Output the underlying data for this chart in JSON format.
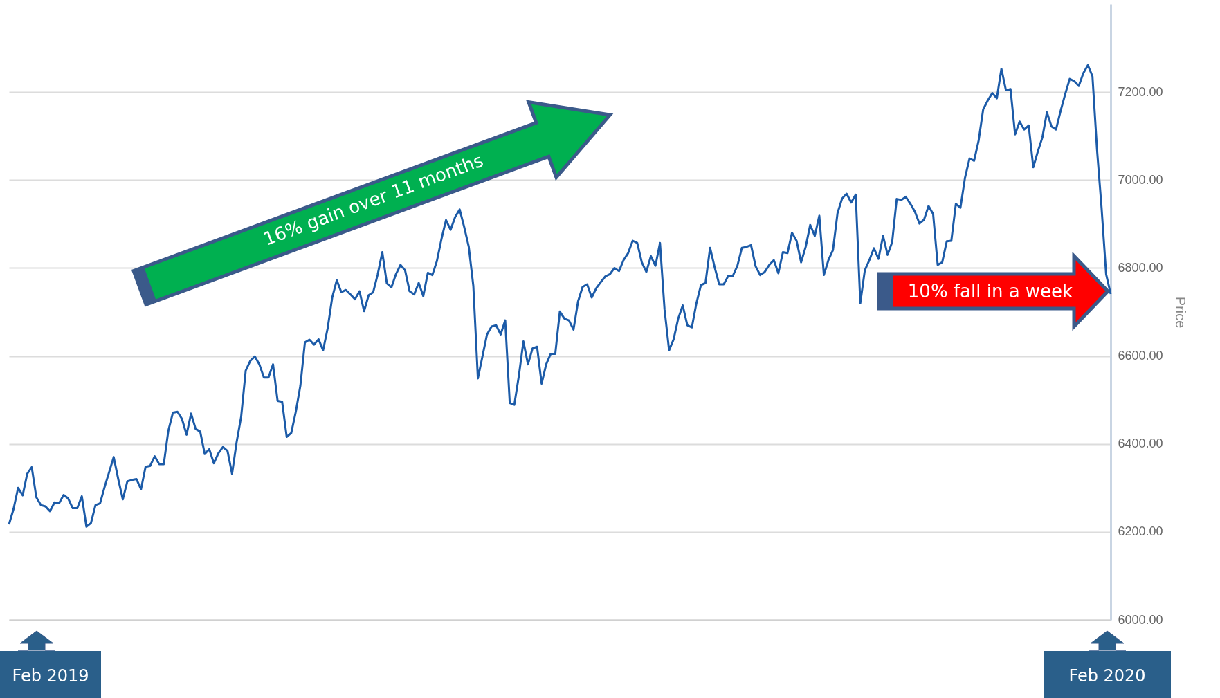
{
  "chart_data": {
    "type": "line",
    "ylabel": "Price",
    "categories": [
      null,
      null,
      null,
      null,
      null,
      null,
      null,
      null,
      null,
      null,
      null,
      null,
      null,
      null,
      null,
      null,
      null,
      null,
      null,
      null,
      null,
      null,
      null,
      null,
      null,
      null,
      null,
      null,
      null,
      null,
      null,
      null,
      null,
      null,
      null,
      null,
      null,
      null,
      null,
      null,
      null,
      null,
      null,
      null,
      null,
      null,
      null,
      null,
      null,
      null,
      null,
      null,
      null,
      null,
      null,
      null,
      null,
      null,
      null,
      null,
      null,
      null,
      null,
      null,
      null,
      null,
      null,
      null,
      null,
      null,
      null,
      null,
      null,
      null,
      null,
      null,
      null,
      null,
      null,
      null,
      null,
      null,
      null,
      null,
      null,
      null,
      null,
      null,
      null,
      null,
      null,
      null,
      null,
      null,
      null,
      null,
      null,
      null,
      null,
      null,
      null,
      null,
      null,
      null,
      null,
      null,
      null,
      null,
      null,
      null,
      null,
      null,
      null,
      null,
      null,
      null,
      null,
      null,
      null,
      null,
      null,
      null,
      null,
      null,
      null,
      null,
      null,
      null,
      null,
      null,
      null,
      null,
      null,
      null,
      null,
      null,
      null,
      null,
      null,
      null,
      null,
      null,
      null,
      null,
      null,
      null,
      null,
      null,
      null,
      null,
      null,
      null,
      null,
      null,
      null,
      null,
      null,
      null,
      null,
      null,
      null,
      null,
      null,
      null,
      null,
      null,
      null,
      null,
      null,
      null,
      null,
      null,
      null,
      null,
      null,
      null,
      null,
      null,
      null,
      null,
      null,
      null,
      null,
      null,
      null,
      null,
      null,
      null,
      null,
      null,
      null,
      null,
      null,
      null,
      null,
      null,
      null,
      null,
      null,
      null,
      null,
      null,
      null,
      null,
      null,
      null,
      null,
      null,
      null,
      null,
      null,
      null,
      null,
      null,
      null,
      null,
      null,
      null,
      null,
      null,
      null,
      null,
      null,
      null,
      null,
      null,
      null,
      null,
      null,
      null,
      null,
      null,
      null,
      null,
      null,
      null,
      null,
      null,
      null,
      null,
      null,
      null,
      null
    ],
    "series": [
      {
        "color": "#1c5ba8",
        "values": [
          6217,
          6252,
          6300,
          6283,
          6332,
          6347,
          6279,
          6261,
          6258,
          6247,
          6267,
          6265,
          6284,
          6276,
          6254,
          6254,
          6281,
          6212,
          6220,
          6261,
          6265,
          6302,
          6336,
          6370,
          6320,
          6274,
          6315,
          6318,
          6320,
          6297,
          6348,
          6350,
          6372,
          6354,
          6354,
          6430,
          6471,
          6473,
          6457,
          6421,
          6469,
          6434,
          6428,
          6377,
          6388,
          6356,
          6379,
          6393,
          6384,
          6332,
          6404,
          6462,
          6567,
          6589,
          6599,
          6581,
          6551,
          6551,
          6581,
          6498,
          6496,
          6416,
          6425,
          6473,
          6532,
          6631,
          6637,
          6626,
          6638,
          6613,
          6663,
          6733,
          6772,
          6745,
          6750,
          6740,
          6729,
          6747,
          6702,
          6738,
          6745,
          6786,
          6836,
          6765,
          6756,
          6786,
          6807,
          6795,
          6747,
          6740,
          6766,
          6736,
          6789,
          6784,
          6816,
          6866,
          6909,
          6887,
          6916,
          6933,
          6893,
          6848,
          6759,
          6549,
          6599,
          6649,
          6667,
          6670,
          6649,
          6681,
          6493,
          6489,
          6555,
          6633,
          6581,
          6617,
          6621,
          6537,
          6581,
          6605,
          6605,
          6701,
          6685,
          6681,
          6660,
          6724,
          6757,
          6763,
          6733,
          6754,
          6768,
          6781,
          6786,
          6800,
          6793,
          6818,
          6834,
          6862,
          6857,
          6813,
          6791,
          6827,
          6805,
          6857,
          6706,
          6613,
          6638,
          6685,
          6715,
          6670,
          6665,
          6720,
          6761,
          6766,
          6846,
          6802,
          6763,
          6763,
          6782,
          6782,
          6805,
          6846,
          6848,
          6852,
          6804,
          6784,
          6791,
          6807,
          6818,
          6788,
          6836,
          6834,
          6880,
          6862,
          6813,
          6848,
          6898,
          6873,
          6919,
          6784,
          6818,
          6841,
          6925,
          6958,
          6969,
          6949,
          6967,
          6720,
          6795,
          6818,
          6845,
          6821,
          6873,
          6830,
          6859,
          6957,
          6955,
          6962,
          6946,
          6928,
          6901,
          6910,
          6941,
          6923,
          6807,
          6813,
          6861,
          6862,
          6946,
          6937,
          7005,
          7049,
          7044,
          7090,
          7161,
          7181,
          7198,
          7186,
          7253,
          7204,
          7207,
          7104,
          7133,
          7115,
          7124,
          7029,
          7065,
          7097,
          7154,
          7122,
          7115,
          7157,
          7195,
          7230,
          7225,
          7214,
          7243,
          7261,
          7236,
          7070,
          6937,
          6786,
          6741
        ]
      }
    ],
    "ylim": [
      6000,
      7400
    ],
    "yticks": [
      {
        "value": 6000,
        "label": "6000.00"
      },
      {
        "value": 6200,
        "label": "6200.00"
      },
      {
        "value": 6400,
        "label": "6400.00"
      },
      {
        "value": 6600,
        "label": "6600.00"
      },
      {
        "value": 6800,
        "label": "6800.00"
      },
      {
        "value": 7000,
        "label": "7000.00"
      },
      {
        "value": 7200,
        "label": "7200.00"
      }
    ],
    "grid": "y",
    "tick_labels": "y",
    "annotations": [
      "16% gain over 11 months",
      "10% fall in a week",
      "Feb 2019",
      "Feb 2020"
    ]
  }
}
